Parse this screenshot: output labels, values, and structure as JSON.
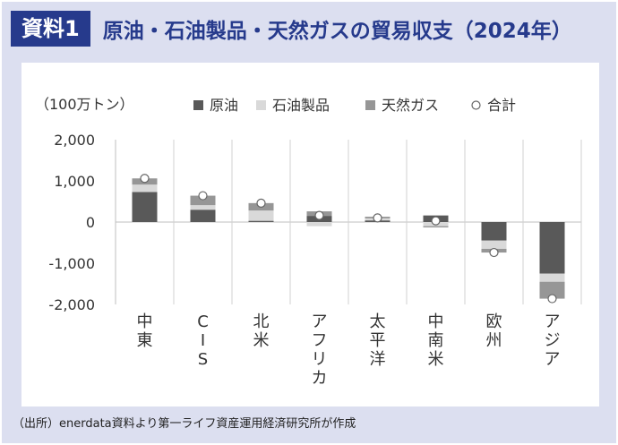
{
  "header": {
    "badge": "資料1",
    "title": "原油・石油製品・天然ガスの貿易収支（2024年）"
  },
  "footer": {
    "source": "（出所）enerdata資料より第一ライフ資産運用経済研究所が作成"
  },
  "colors": {
    "crude": "#595959",
    "products": "#d9d9d9",
    "gas": "#969696",
    "frame": "#dcdff0",
    "accent": "#263a8c"
  },
  "chart_data": {
    "type": "bar",
    "stacked": true,
    "unit_label": "（100万トン）",
    "categories": [
      "中東",
      "CIS",
      "北米",
      "アフリカ",
      "太平洋",
      "中南米",
      "欧州",
      "アジア"
    ],
    "series": [
      {
        "name": "原油",
        "values": [
          730,
          300,
          30,
          150,
          40,
          160,
          -450,
          -1250
        ]
      },
      {
        "name": "石油製品",
        "values": [
          180,
          110,
          250,
          -100,
          50,
          -100,
          -200,
          -200
        ]
      },
      {
        "name": "天然ガス",
        "values": [
          150,
          230,
          180,
          110,
          40,
          -30,
          -90,
          -410
        ]
      }
    ],
    "total": {
      "name": "合計",
      "values": [
        1060,
        640,
        460,
        160,
        100,
        30,
        -740,
        -1860
      ]
    },
    "yticks": [
      "2,000",
      "1,000",
      "0",
      "-1,000",
      "-2,000"
    ],
    "ylim": [
      -2000,
      2000
    ],
    "grid": false,
    "legend": "top"
  }
}
